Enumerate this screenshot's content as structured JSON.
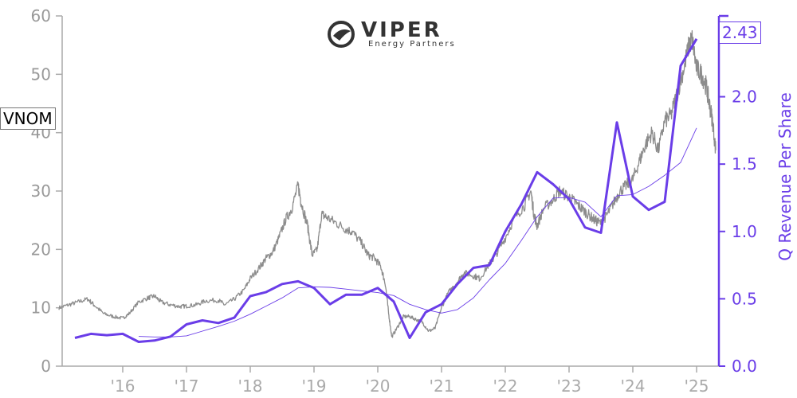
{
  "ticker": "VNOM",
  "logo": {
    "word": "VIPER",
    "sub": "Energy Partners"
  },
  "last_value_label": "2.43",
  "colors": {
    "price": "#8c8c8c",
    "revenue": "#6a3de8",
    "axis": "#aaaaaa"
  },
  "chart_data": {
    "type": "line",
    "x_tick_labels": [
      "'16",
      "'17",
      "'18",
      "'19",
      "'20",
      "'21",
      "'22",
      "'23",
      "'24",
      "'25"
    ],
    "x_tick_years": [
      2016,
      2017,
      2018,
      2019,
      2020,
      2021,
      2022,
      2023,
      2024,
      2025
    ],
    "xlim": [
      2015.05,
      2025.35
    ],
    "left_axis": {
      "ylim": [
        0,
        60
      ],
      "ticks": [
        0,
        10,
        20,
        30,
        40,
        50,
        60
      ],
      "label": ""
    },
    "right_axis": {
      "ylim": [
        0,
        2.6
      ],
      "ticks": [
        0.0,
        0.5,
        1.0,
        1.5,
        2.0
      ],
      "tick_labels": [
        "0.0",
        "0.5",
        "1.0",
        "1.5",
        "2.0"
      ],
      "label": "Q Revenue Per Share"
    },
    "series": [
      {
        "axis": "left",
        "style": "price",
        "points": [
          [
            2015.0,
            10
          ],
          [
            2015.15,
            10.5
          ],
          [
            2015.3,
            11
          ],
          [
            2015.45,
            11.5
          ],
          [
            2015.55,
            10.5
          ],
          [
            2015.7,
            9
          ],
          [
            2015.85,
            8.5
          ],
          [
            2016.0,
            8.2
          ],
          [
            2016.1,
            9
          ],
          [
            2016.25,
            11
          ],
          [
            2016.4,
            11.7
          ],
          [
            2016.5,
            12
          ],
          [
            2016.6,
            11
          ],
          [
            2016.75,
            10.5
          ],
          [
            2016.9,
            10.2
          ],
          [
            2017.0,
            10.3
          ],
          [
            2017.15,
            10.5
          ],
          [
            2017.3,
            11.2
          ],
          [
            2017.5,
            11.3
          ],
          [
            2017.6,
            10.5
          ],
          [
            2017.75,
            11.5
          ],
          [
            2017.9,
            13
          ],
          [
            2018.0,
            15
          ],
          [
            2018.15,
            17
          ],
          [
            2018.25,
            18.5
          ],
          [
            2018.35,
            19.5
          ],
          [
            2018.45,
            22
          ],
          [
            2018.55,
            25
          ],
          [
            2018.65,
            27
          ],
          [
            2018.75,
            31
          ],
          [
            2018.8,
            28
          ],
          [
            2018.9,
            24
          ],
          [
            2018.97,
            19
          ],
          [
            2019.05,
            20
          ],
          [
            2019.12,
            26
          ],
          [
            2019.2,
            25.5
          ],
          [
            2019.35,
            24.5
          ],
          [
            2019.5,
            23.5
          ],
          [
            2019.6,
            23
          ],
          [
            2019.75,
            21
          ],
          [
            2019.85,
            19
          ],
          [
            2019.95,
            18.5
          ],
          [
            2020.05,
            17
          ],
          [
            2020.12,
            14
          ],
          [
            2020.17,
            9
          ],
          [
            2020.22,
            5
          ],
          [
            2020.3,
            6.5
          ],
          [
            2020.4,
            8.5
          ],
          [
            2020.5,
            8.5
          ],
          [
            2020.6,
            8
          ],
          [
            2020.7,
            7.5
          ],
          [
            2020.8,
            6
          ],
          [
            2020.9,
            6.5
          ],
          [
            2021.0,
            10
          ],
          [
            2021.1,
            12.5
          ],
          [
            2021.25,
            14.5
          ],
          [
            2021.35,
            16
          ],
          [
            2021.5,
            15.5
          ],
          [
            2021.6,
            15
          ],
          [
            2021.75,
            17.5
          ],
          [
            2021.85,
            19
          ],
          [
            2022.0,
            22
          ],
          [
            2022.15,
            25.5
          ],
          [
            2022.3,
            27.5
          ],
          [
            2022.4,
            30
          ],
          [
            2022.45,
            26
          ],
          [
            2022.5,
            24
          ],
          [
            2022.6,
            27
          ],
          [
            2022.75,
            28.5
          ],
          [
            2022.85,
            30
          ],
          [
            2023.0,
            29
          ],
          [
            2023.1,
            28
          ],
          [
            2023.2,
            27
          ],
          [
            2023.3,
            26
          ],
          [
            2023.4,
            25
          ],
          [
            2023.5,
            24.5
          ],
          [
            2023.6,
            26
          ],
          [
            2023.7,
            28
          ],
          [
            2023.8,
            30
          ],
          [
            2023.9,
            31
          ],
          [
            2024.0,
            32
          ],
          [
            2024.1,
            35
          ],
          [
            2024.2,
            38
          ],
          [
            2024.3,
            40
          ],
          [
            2024.4,
            37
          ],
          [
            2024.5,
            42
          ],
          [
            2024.6,
            43
          ],
          [
            2024.7,
            47
          ],
          [
            2024.8,
            51
          ],
          [
            2024.88,
            55
          ],
          [
            2024.93,
            56
          ],
          [
            2025.0,
            51
          ],
          [
            2025.08,
            50
          ],
          [
            2025.15,
            48
          ],
          [
            2025.2,
            45
          ],
          [
            2025.25,
            42
          ],
          [
            2025.3,
            37
          ]
        ]
      },
      {
        "axis": "left",
        "style": "price-avg",
        "points": [
          [
            2016.25,
            5.1
          ],
          [
            2016.5,
            5
          ],
          [
            2016.75,
            5
          ],
          [
            2017.0,
            5.2
          ],
          [
            2017.25,
            6
          ],
          [
            2017.5,
            6.8
          ],
          [
            2017.75,
            7.7
          ],
          [
            2018.0,
            8.9
          ],
          [
            2018.25,
            10.3
          ],
          [
            2018.5,
            11.7
          ],
          [
            2018.75,
            13.4
          ],
          [
            2019.0,
            13.6
          ],
          [
            2019.25,
            13.5
          ],
          [
            2019.5,
            13.2
          ],
          [
            2019.75,
            12.9
          ],
          [
            2020.0,
            12.6
          ],
          [
            2020.25,
            12.1
          ],
          [
            2020.5,
            10.6
          ],
          [
            2020.75,
            9.7
          ],
          [
            2021.0,
            9.1
          ],
          [
            2021.25,
            9.7
          ],
          [
            2021.5,
            11.7
          ],
          [
            2021.75,
            14.8
          ],
          [
            2022.0,
            17.6
          ],
          [
            2022.25,
            21.5
          ],
          [
            2022.5,
            25.6
          ],
          [
            2022.75,
            28.8
          ],
          [
            2023.0,
            28.9
          ],
          [
            2023.25,
            28.1
          ],
          [
            2023.5,
            25.6
          ],
          [
            2023.75,
            29.2
          ],
          [
            2024.0,
            29.4
          ],
          [
            2024.25,
            30.8
          ],
          [
            2024.5,
            32.7
          ],
          [
            2024.75,
            34.9
          ],
          [
            2025.0,
            40.8
          ]
        ]
      },
      {
        "axis": "right",
        "style": "revenue",
        "points": [
          [
            2015.25,
            0.21
          ],
          [
            2015.5,
            0.24
          ],
          [
            2015.75,
            0.23
          ],
          [
            2016.0,
            0.24
          ],
          [
            2016.25,
            0.18
          ],
          [
            2016.5,
            0.19
          ],
          [
            2016.75,
            0.22
          ],
          [
            2017.0,
            0.31
          ],
          [
            2017.25,
            0.34
          ],
          [
            2017.5,
            0.32
          ],
          [
            2017.75,
            0.36
          ],
          [
            2018.0,
            0.52
          ],
          [
            2018.25,
            0.55
          ],
          [
            2018.5,
            0.61
          ],
          [
            2018.75,
            0.63
          ],
          [
            2019.0,
            0.58
          ],
          [
            2019.25,
            0.46
          ],
          [
            2019.5,
            0.53
          ],
          [
            2019.75,
            0.53
          ],
          [
            2020.0,
            0.58
          ],
          [
            2020.25,
            0.48
          ],
          [
            2020.5,
            0.21
          ],
          [
            2020.75,
            0.4
          ],
          [
            2021.0,
            0.46
          ],
          [
            2021.25,
            0.61
          ],
          [
            2021.5,
            0.73
          ],
          [
            2021.75,
            0.75
          ],
          [
            2022.0,
            1.0
          ],
          [
            2022.25,
            1.2
          ],
          [
            2022.5,
            1.44
          ],
          [
            2022.75,
            1.35
          ],
          [
            2023.0,
            1.24
          ],
          [
            2023.25,
            1.03
          ],
          [
            2023.5,
            0.99
          ],
          [
            2023.75,
            1.81
          ],
          [
            2024.0,
            1.26
          ],
          [
            2024.25,
            1.16
          ],
          [
            2024.5,
            1.22
          ],
          [
            2024.75,
            2.23
          ],
          [
            2025.0,
            2.43
          ]
        ]
      }
    ]
  }
}
